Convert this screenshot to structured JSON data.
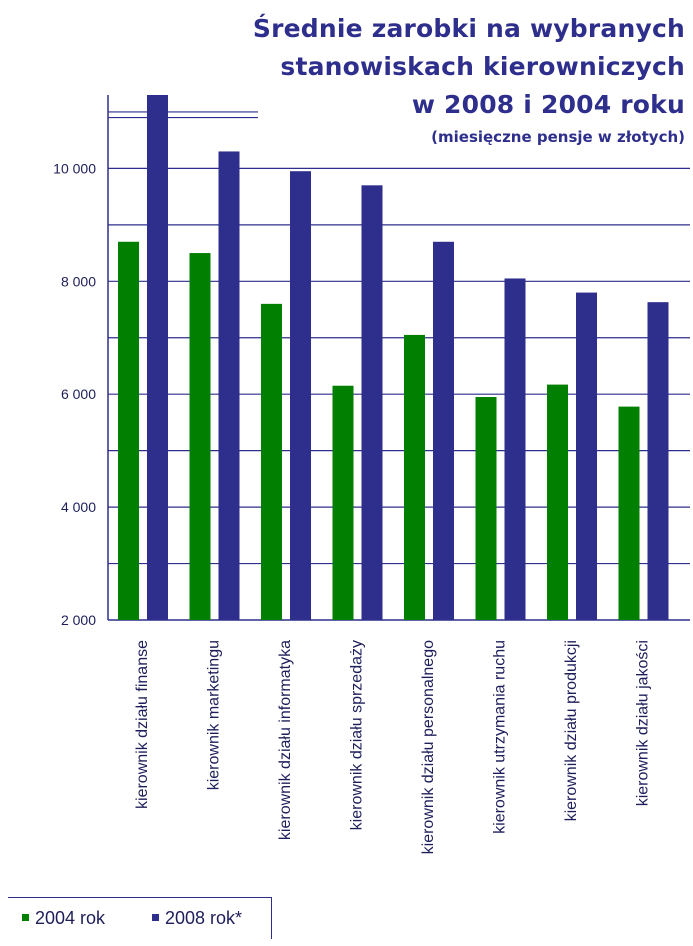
{
  "chart_data": {
    "type": "bar",
    "title_lines": [
      "Średnie zarobki na wybranych",
      "stanowiskach kierowniczych",
      "w 2008 i 2004 roku"
    ],
    "subtitle": "(miesięczne pensje w złotych)",
    "categories": [
      "kierownik działu finanse",
      "kierownik marketingu",
      "kierownik działu informatyka",
      "kierownik działu sprzedaży",
      "kierownik działu personalnego",
      "kierownik utrzymania ruchu",
      "kierownik działu produkcji",
      "kierownik działu jakości"
    ],
    "series": [
      {
        "name": "2004 rok",
        "color": "#007f00",
        "values": [
          8700,
          8500,
          7600,
          6150,
          7050,
          5950,
          6170,
          5780
        ]
      },
      {
        "name": "2008 rok*",
        "color": "#2e2e8c",
        "values": [
          11300,
          10300,
          9950,
          9700,
          8700,
          8050,
          7800,
          7630
        ]
      }
    ],
    "ylim": [
      2000,
      11300
    ],
    "yticks": [
      2000,
      4000,
      6000,
      8000,
      10000
    ],
    "ytick_labels": [
      "2 000",
      "4 000",
      "6 000",
      "8 000",
      "10 000"
    ],
    "grid": true,
    "legend_position": "bottom-left"
  }
}
